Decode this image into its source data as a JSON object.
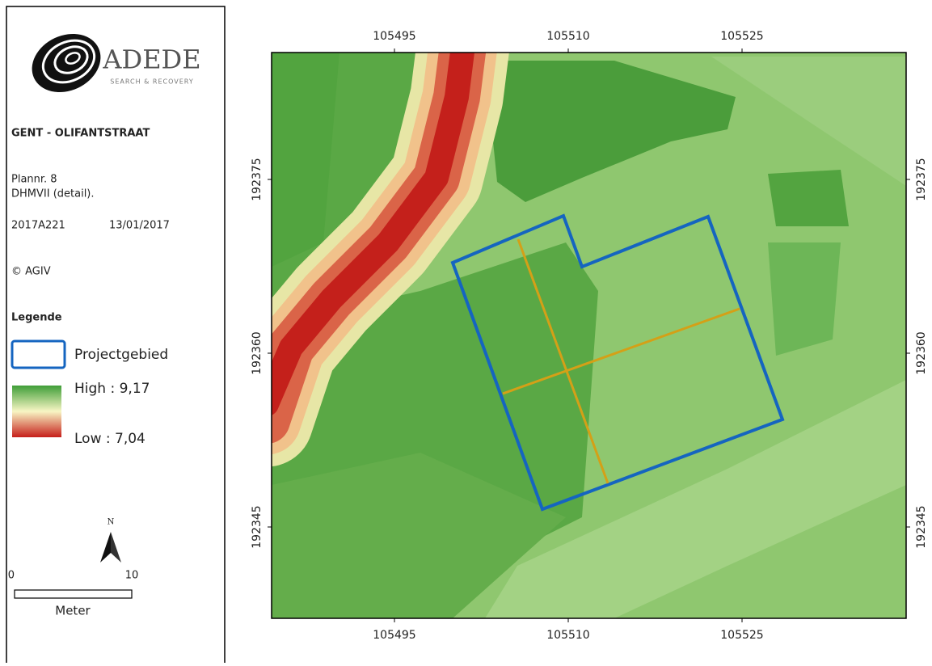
{
  "logo": {
    "name": "ADEDE",
    "tagline": "SEARCH & RECOVERY"
  },
  "panel": {
    "title": "GENT - OLIFANTSTRAAT",
    "plan": "Plannr. 8",
    "layer": "DHMVII (detail).",
    "project_code": "2017A221",
    "date": "13/01/2017",
    "copyright": "© AGIV"
  },
  "legend": {
    "title": "Legende",
    "items": [
      {
        "label": "Projectgebied"
      }
    ],
    "high": "High : 9,17",
    "low": "Low : 7,04"
  },
  "north_arrow": "N",
  "scale_bar": {
    "ticks": [
      0,
      10
    ],
    "unit": "Meter"
  },
  "map": {
    "x_ticks": [
      105495,
      105510,
      105525
    ],
    "y_ticks": [
      192375,
      192360,
      192345
    ]
  }
}
